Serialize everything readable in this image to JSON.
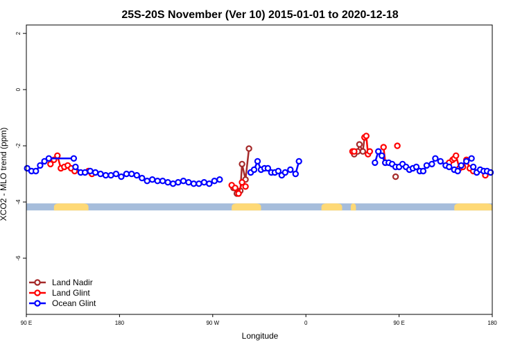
{
  "chart_data": {
    "type": "line",
    "title": "25S-20S November (Ver 10)   2015-01-01 to 2020-12-18",
    "xlabel": "Longitude",
    "ylabel": "XCO2 - MLO trend (ppm)",
    "xlim": [
      -90,
      180
    ],
    "ylim": [
      -8,
      2.3
    ],
    "x_ticks": [
      {
        "value": -90,
        "label": "90 E"
      },
      {
        "value": -36,
        "label": "180"
      },
      {
        "value": 18,
        "label": "90 W"
      },
      {
        "value": 72,
        "label": "0"
      },
      {
        "value": 126,
        "label": "90 E"
      },
      {
        "value": 180,
        "label": "180"
      }
    ],
    "y_ticks": [
      {
        "value": 2,
        "label": "2"
      },
      {
        "value": 0,
        "label": "0"
      },
      {
        "value": -2,
        "label": "-2"
      },
      {
        "value": -4,
        "label": "-4"
      },
      {
        "value": -6,
        "label": "-6"
      }
    ],
    "colors": {
      "land_nadir": "#a52a2a",
      "land_glint": "#ff0000",
      "ocean_glint": "#0000ff",
      "ocean_band": "#a6bddb",
      "land_band": "#fed976"
    },
    "land_spans": [
      [
        -74,
        -54
      ],
      [
        29,
        46
      ],
      [
        81,
        93
      ],
      [
        98,
        101
      ],
      [
        158,
        183
      ]
    ],
    "band_range": [
      -4.05,
      -4.3
    ],
    "series": [
      {
        "name": "Land Nadir",
        "color": "#a52a2a",
        "segments": [
          [
            [
              30,
              -3.5
            ],
            [
              32,
              -3.7
            ],
            [
              34,
              -3.6
            ],
            [
              35,
              -2.65
            ],
            [
              37,
              -3.2
            ],
            [
              39,
              -2.1
            ]
          ],
          [
            [
              100,
              -2.3
            ],
            [
              102,
              -2.2
            ],
            [
              103,
              -1.95
            ],
            [
              105,
              -2.2
            ],
            [
              106,
              -1.7
            ]
          ],
          [
            [
              124,
              -3.1
            ]
          ]
        ]
      },
      {
        "name": "Land Glint",
        "color": "#ff0000",
        "segments": [
          [
            [
              -76,
              -2.65
            ],
            [
              -74,
              -2.5
            ],
            [
              -72,
              -2.35
            ],
            [
              -70,
              -2.8
            ],
            [
              -68,
              -2.75
            ],
            [
              -66,
              -2.7
            ],
            [
              -64,
              -2.8
            ],
            [
              -62,
              -2.9
            ]
          ],
          [
            [
              -54,
              -2.9
            ],
            [
              -52,
              -3.0
            ]
          ],
          [
            [
              29,
              -3.4
            ],
            [
              31,
              -3.5
            ],
            [
              33,
              -3.7
            ],
            [
              35,
              -3.3
            ],
            [
              37,
              -3.45
            ]
          ],
          [
            [
              99,
              -2.2
            ],
            [
              100,
              -2.2
            ]
          ],
          [
            [
              106,
              -1.7
            ],
            [
              107,
              -1.65
            ],
            [
              108,
              -2.3
            ],
            [
              109,
              -2.2
            ]
          ],
          [
            [
              117,
              -2.05
            ],
            [
              118,
              -2.6
            ]
          ],
          [
            [
              125,
              -2.0
            ]
          ],
          [
            [
              155,
              -2.6
            ],
            [
              157,
              -2.5
            ],
            [
              158,
              -2.45
            ],
            [
              159,
              -2.35
            ],
            [
              161,
              -2.8
            ],
            [
              163,
              -2.75
            ],
            [
              165,
              -2.5
            ],
            [
              167,
              -2.8
            ],
            [
              169,
              -2.9
            ]
          ],
          [
            [
              176,
              -3.05
            ]
          ]
        ]
      },
      {
        "name": "Ocean Glint",
        "color": "#0000ff",
        "segments": [
          [
            [
              -89.5,
              -2.8
            ],
            [
              -87,
              -2.9
            ],
            [
              -84.5,
              -2.9
            ],
            [
              -82,
              -2.7
            ],
            [
              -79.5,
              -2.55
            ],
            [
              -77,
              -2.45
            ],
            [
              -62.5,
              -2.45
            ]
          ],
          [
            [
              -61.5,
              -2.75
            ],
            [
              -58.5,
              -2.95
            ],
            [
              -56,
              -2.95
            ],
            [
              -53,
              -2.9
            ],
            [
              -50,
              -2.95
            ],
            [
              -47,
              -3.0
            ],
            [
              -44,
              -3.05
            ],
            [
              -41,
              -3.05
            ],
            [
              -38,
              -3.0
            ],
            [
              -35,
              -3.1
            ],
            [
              -32,
              -3.0
            ],
            [
              -29,
              -3.0
            ],
            [
              -26,
              -3.05
            ],
            [
              -23,
              -3.15
            ],
            [
              -20,
              -3.25
            ],
            [
              -17,
              -3.2
            ],
            [
              -14,
              -3.25
            ],
            [
              -11,
              -3.25
            ],
            [
              -8,
              -3.3
            ],
            [
              -5,
              -3.35
            ],
            [
              -2,
              -3.3
            ],
            [
              1,
              -3.25
            ],
            [
              4,
              -3.3
            ],
            [
              7,
              -3.35
            ],
            [
              10,
              -3.35
            ],
            [
              13,
              -3.3
            ],
            [
              16,
              -3.35
            ],
            [
              19,
              -3.25
            ],
            [
              22,
              -3.2
            ]
          ],
          [
            [
              40,
              -2.95
            ],
            [
              42,
              -2.85
            ],
            [
              44,
              -2.55
            ],
            [
              46,
              -2.85
            ],
            [
              48,
              -2.8
            ],
            [
              50,
              -2.8
            ],
            [
              52,
              -2.95
            ],
            [
              54,
              -2.95
            ],
            [
              56,
              -2.9
            ],
            [
              58,
              -3.05
            ],
            [
              60,
              -2.95
            ],
            [
              63,
              -2.85
            ],
            [
              66,
              -3.0
            ],
            [
              68,
              -2.55
            ]
          ],
          [
            [
              112,
              -2.6
            ],
            [
              114,
              -2.2
            ],
            [
              116,
              -2.35
            ],
            [
              118,
              -2.6
            ],
            [
              120,
              -2.6
            ],
            [
              122,
              -2.65
            ],
            [
              124,
              -2.75
            ],
            [
              126,
              -2.75
            ],
            [
              128,
              -2.65
            ],
            [
              130,
              -2.75
            ],
            [
              132,
              -2.85
            ],
            [
              134,
              -2.8
            ],
            [
              136,
              -2.75
            ],
            [
              138,
              -2.9
            ],
            [
              140,
              -2.9
            ],
            [
              142,
              -2.7
            ],
            [
              145,
              -2.65
            ],
            [
              147,
              -2.45
            ],
            [
              150,
              -2.55
            ],
            [
              153,
              -2.7
            ],
            [
              155,
              -2.75
            ],
            [
              158,
              -2.85
            ],
            [
              160,
              -2.9
            ],
            [
              162,
              -2.7
            ],
            [
              165,
              -2.55
            ],
            [
              168,
              -2.45
            ]
          ],
          [
            [
              169,
              -2.75
            ],
            [
              171,
              -2.95
            ],
            [
              173,
              -2.85
            ],
            [
              175,
              -2.9
            ],
            [
              177,
              -2.9
            ],
            [
              179,
              -2.95
            ]
          ]
        ]
      }
    ]
  }
}
